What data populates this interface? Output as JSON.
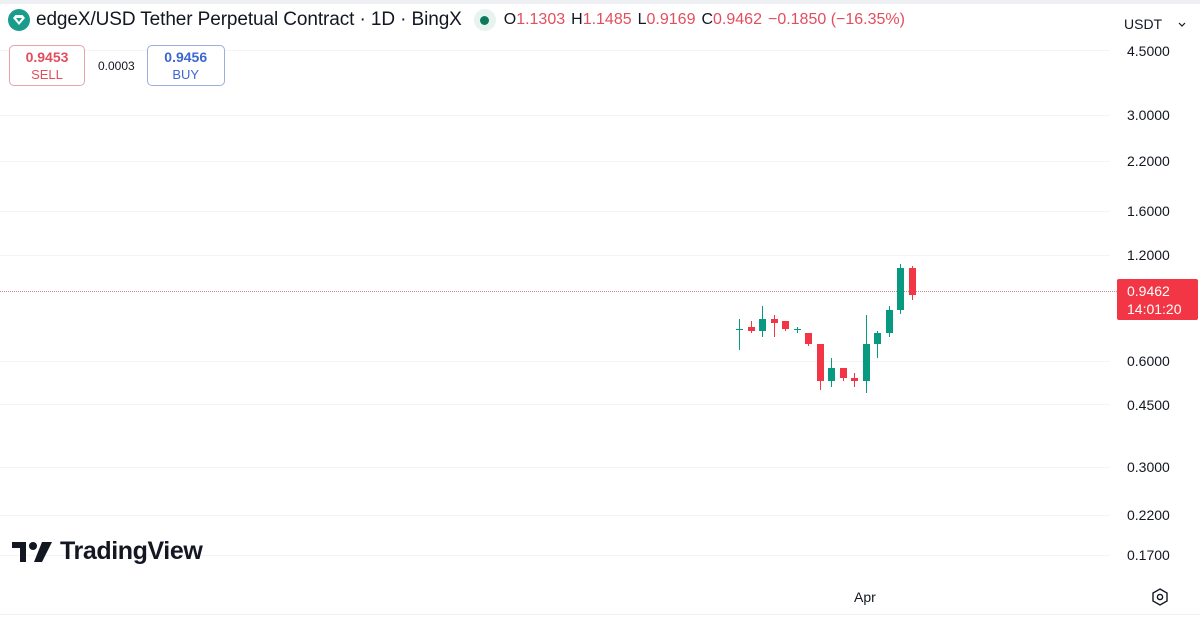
{
  "header": {
    "symbol_title": "edgeX/USD Tether Perpetual Contract · 1D · BingX",
    "symbol_icon": "edgex-diamond-icon",
    "status_dot_color": "#0c7a5a",
    "ohlc": {
      "open_label": "O",
      "open": "1.1303",
      "high_label": "H",
      "high": "1.1485",
      "low_label": "L",
      "low": "0.9169",
      "close_label": "C",
      "close": "0.9462",
      "change": "−0.1850 (−16.35%)"
    }
  },
  "trade": {
    "sell_price": "0.9453",
    "sell_label": "SELL",
    "spread": "0.0003",
    "buy_price": "0.9456",
    "buy_label": "BUY"
  },
  "currency_selector": {
    "value": "USDT",
    "icon": "chevron-down-icon"
  },
  "price_tag": {
    "price": "0.9462",
    "countdown": "14:01:20",
    "color": "#f23645"
  },
  "colors": {
    "up": "#089981",
    "down": "#f23645",
    "sell": "#e24e5e",
    "buy": "#3c67d2"
  },
  "time_axis": {
    "label": "Apr"
  },
  "branding": {
    "name": "TradingView"
  },
  "chart_data": {
    "type": "candlestick",
    "title": "edgeX/USD Tether Perpetual Contract · 1D · BingX",
    "xlabel": "",
    "ylabel": "USDT",
    "y_scale": "log",
    "ylim": [
      0.15,
      4.8
    ],
    "y_ticks": [
      "4.5000",
      "3.0000",
      "2.2000",
      "1.6000",
      "1.2000",
      "0.6000",
      "0.4500",
      "0.3000",
      "0.2200",
      "0.1700"
    ],
    "x_tick_labels": [
      "Apr"
    ],
    "grid": true,
    "last_price": 0.9462,
    "candles": [
      {
        "open": 0.76,
        "high": 0.81,
        "low": 0.66,
        "close": 0.76
      },
      {
        "open": 0.77,
        "high": 0.8,
        "low": 0.74,
        "close": 0.75
      },
      {
        "open": 0.75,
        "high": 0.88,
        "low": 0.72,
        "close": 0.81
      },
      {
        "open": 0.81,
        "high": 0.83,
        "low": 0.72,
        "close": 0.79
      },
      {
        "open": 0.8,
        "high": 0.8,
        "low": 0.75,
        "close": 0.76
      },
      {
        "open": 0.76,
        "high": 0.77,
        "low": 0.74,
        "close": 0.76
      },
      {
        "open": 0.74,
        "high": 0.74,
        "low": 0.68,
        "close": 0.69
      },
      {
        "open": 0.69,
        "high": 0.69,
        "low": 0.51,
        "close": 0.54
      },
      {
        "open": 0.54,
        "high": 0.63,
        "low": 0.52,
        "close": 0.59
      },
      {
        "open": 0.59,
        "high": 0.59,
        "low": 0.54,
        "close": 0.55
      },
      {
        "open": 0.55,
        "high": 0.57,
        "low": 0.52,
        "close": 0.54
      },
      {
        "open": 0.54,
        "high": 0.83,
        "low": 0.5,
        "close": 0.69
      },
      {
        "open": 0.69,
        "high": 0.75,
        "low": 0.63,
        "close": 0.74
      },
      {
        "open": 0.74,
        "high": 0.88,
        "low": 0.72,
        "close": 0.86
      },
      {
        "open": 0.86,
        "high": 1.16,
        "low": 0.84,
        "close": 1.13
      },
      {
        "open": 1.1303,
        "high": 1.1485,
        "low": 0.9169,
        "close": 0.9462
      }
    ]
  }
}
